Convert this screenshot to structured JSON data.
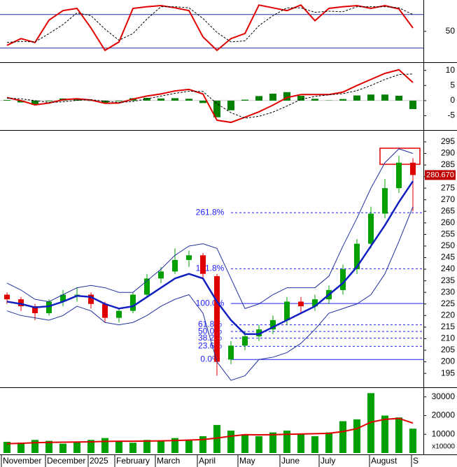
{
  "chart_data": [
    {
      "type": "line",
      "ylim": [
        -4,
        106
      ],
      "yticks": [
        50
      ],
      "levels": [
        20,
        80
      ],
      "level_color": "#2030a0",
      "series": [
        {
          "color": "#e00000",
          "style": "line",
          "values": [
            25,
            37,
            30,
            70,
            87,
            91,
            56,
            16,
            31,
            91,
            94,
            96,
            92,
            87,
            40,
            16,
            37,
            46,
            97,
            92,
            87,
            97,
            69,
            91,
            94,
            96,
            91,
            96,
            90,
            56
          ]
        },
        {
          "color": "#000000",
          "style": "dashed",
          "values": [
            30,
            32,
            31,
            46,
            62,
            83,
            78,
            54,
            34,
            46,
            72,
            94,
            94,
            92,
            73,
            48,
            31,
            33,
            60,
            78,
            92,
            92,
            84,
            86,
            85,
            94,
            94,
            94,
            92,
            80
          ]
        }
      ]
    },
    {
      "type": "line",
      "ylim": [
        -9.5,
        12
      ],
      "yticks": [
        -5,
        0,
        5,
        10
      ],
      "series": [
        {
          "color": "#008000",
          "style": "bar",
          "values": [
            0.2,
            -0.6,
            -1.4,
            -0.2,
            0.7,
            0.5,
            -0.1,
            -0.7,
            -0.2,
            0.8,
            0.9,
            0.7,
            0.8,
            0.6,
            -0.8,
            -5.5,
            -3.2,
            0.3,
            1.5,
            2.3,
            2.8,
            1.6,
            0.6,
            0.1,
            0.5,
            1.7,
            2,
            2,
            1.6,
            -2.8
          ]
        },
        {
          "color": "#e00000",
          "style": "line",
          "values": [
            1,
            0,
            -1.4,
            -0.8,
            0.3,
            0.6,
            0.2,
            -0.9,
            -0.8,
            0.5,
            1.5,
            2.2,
            3.2,
            3.7,
            2.2,
            -6.5,
            -7.2,
            -5.5,
            -3.7,
            -1.5,
            1,
            2,
            2,
            2,
            2.8,
            5,
            7,
            9,
            10.2,
            6
          ]
        },
        {
          "color": "#000000",
          "style": "dashed",
          "values": [
            0.8,
            0.6,
            0,
            -0.6,
            -0.4,
            0.1,
            0.3,
            -0.2,
            -0.6,
            -0.3,
            0.6,
            1.5,
            2.4,
            3.1,
            3,
            -1,
            -4,
            -5.8,
            -5.2,
            -3.8,
            -1.8,
            0.4,
            1.4,
            1.9,
            2.3,
            3.3,
            5,
            7,
            8.6,
            8.8
          ]
        }
      ]
    },
    {
      "type": "candlestick",
      "ylim": [
        189.3,
        299.5
      ],
      "yticks": [
        195,
        200,
        205,
        210,
        215,
        220,
        225,
        230,
        235,
        240,
        245,
        250,
        255,
        260,
        265,
        270,
        275,
        280,
        285,
        290,
        295
      ],
      "up_color": "#00a000",
      "down_color": "#e00000",
      "open": [
        229,
        227,
        224,
        221,
        226,
        229,
        229,
        225,
        219,
        222,
        229,
        236,
        239,
        244,
        246,
        237,
        201,
        207,
        211,
        214,
        218,
        226,
        224,
        227,
        231,
        240,
        251,
        264,
        275,
        286
      ],
      "high": [
        230,
        228,
        225,
        227,
        231,
        232,
        230,
        226,
        223,
        230,
        238,
        241,
        249,
        248,
        247,
        238,
        209,
        213,
        216,
        220,
        228,
        228,
        229,
        233,
        242,
        253,
        267,
        279,
        289,
        288
      ],
      "low": [
        225,
        222,
        218,
        220,
        224,
        226,
        223,
        217,
        217,
        221,
        228,
        234,
        238,
        241,
        236,
        194,
        199,
        205,
        209,
        212,
        216,
        221,
        222,
        225,
        229,
        238,
        249,
        262,
        273,
        265
      ],
      "close": [
        227,
        224,
        221,
        226,
        229,
        229,
        225,
        219,
        222,
        229,
        236,
        239,
        244,
        246,
        238,
        200,
        207,
        211,
        214,
        218,
        226,
        224,
        227,
        231,
        240,
        251,
        264,
        275,
        286,
        280.67
      ],
      "series": [
        {
          "color": "#1020c0",
          "style": "thick",
          "values": [
            226,
            225,
            223.5,
            224,
            226,
            228.5,
            228,
            225,
            223,
            224,
            228,
            232,
            236,
            238,
            236,
            226,
            218,
            212,
            212,
            215,
            218,
            221,
            224,
            229,
            234,
            241,
            250,
            259,
            269,
            278
          ]
        },
        {
          "color": "#2030a0",
          "style": "line",
          "values": [
            234,
            231,
            227,
            226,
            229,
            232,
            233,
            232,
            230,
            230,
            235,
            240,
            246,
            250,
            251,
            249,
            236,
            223,
            225,
            229,
            232,
            232,
            232,
            237,
            250,
            262,
            275,
            286,
            292,
            290
          ]
        },
        {
          "color": "#2030a0",
          "style": "line",
          "values": [
            222,
            220,
            219,
            218,
            220,
            224,
            222,
            217,
            216,
            217,
            220,
            224,
            227,
            229,
            221,
            200,
            192,
            194,
            201,
            202,
            204,
            208,
            214,
            221,
            223,
            225,
            229,
            238,
            252,
            267
          ]
        }
      ],
      "fib_color": "#2020ff",
      "fib_levels": [
        {
          "value": 264.4,
          "label": "261.8%"
        },
        {
          "value": 240.2,
          "label": "161.8%"
        },
        {
          "value": 225.2,
          "label": "100.0%"
        },
        {
          "value": 216.0,
          "label": "61.8%"
        },
        {
          "value": 213.1,
          "label": "50.0%"
        },
        {
          "value": 210.2,
          "label": "38.2%"
        },
        {
          "value": 206.7,
          "label": "23.6%"
        },
        {
          "value": 201,
          "label": "0.0%"
        }
      ],
      "last_price": {
        "value": 280.67,
        "label": "280.670"
      }
    },
    {
      "type": "bar",
      "ylim": [
        0,
        34000
      ],
      "yticks": [
        10000,
        20000,
        30000
      ],
      "unit_label": "x10000",
      "series": [
        {
          "color": "#00a000",
          "style": "bar",
          "values": [
            6000,
            5500,
            7000,
            6500,
            5000,
            6000,
            7000,
            8000,
            6000,
            5500,
            7000,
            6500,
            8000,
            7000,
            9000,
            15000,
            12000,
            10000,
            9000,
            11000,
            12000,
            10000,
            9000,
            11000,
            17000,
            18000,
            32000,
            20000,
            19000,
            13000
          ]
        },
        {
          "color": "#e00000",
          "style": "line",
          "values": [
            5000,
            5200,
            5500,
            5700,
            5800,
            5900,
            6000,
            6200,
            6300,
            6300,
            6400,
            6500,
            6700,
            6900,
            7200,
            8000,
            9000,
            9800,
            9700,
            9800,
            10000,
            10200,
            10300,
            10500,
            11500,
            13000,
            16500,
            18000,
            18500,
            16000
          ]
        }
      ],
      "x_labels": [
        {
          "value": -0.4,
          "label": "November"
        },
        {
          "value": 2.75,
          "label": "December"
        },
        {
          "value": 5.8,
          "label": "2025"
        },
        {
          "value": 7.7,
          "label": "February"
        },
        {
          "value": 10.6,
          "label": "March"
        },
        {
          "value": 13.6,
          "label": "April"
        },
        {
          "value": 16.5,
          "label": "May"
        },
        {
          "value": 19.5,
          "label": "June"
        },
        {
          "value": 22.3,
          "label": "July"
        },
        {
          "value": 25.9,
          "label": "August"
        },
        {
          "value": 28.9,
          "label": "S"
        }
      ]
    }
  ]
}
